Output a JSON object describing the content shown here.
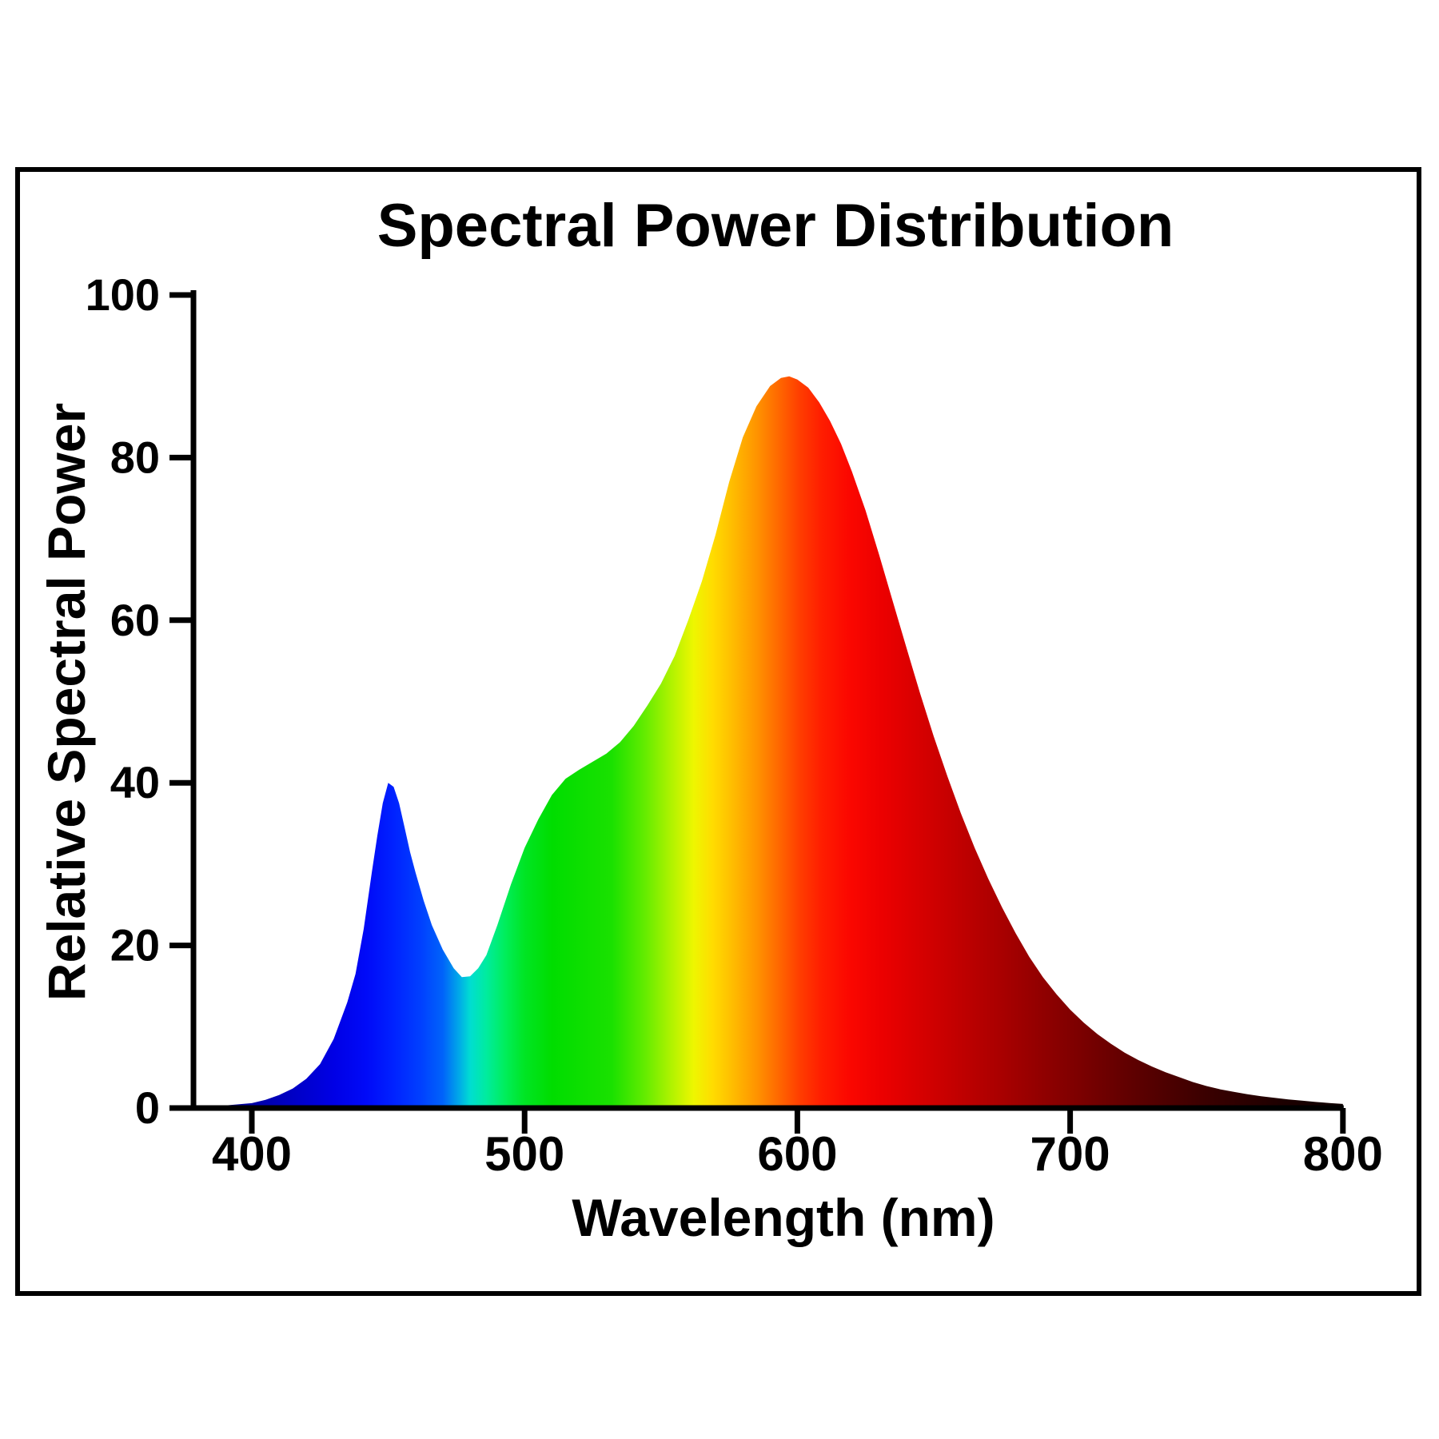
{
  "title": "Spectral Power Distribution",
  "x_axis": {
    "label": "Wavelength (nm)",
    "ticks": [
      400,
      500,
      600,
      700,
      800
    ]
  },
  "y_axis": {
    "label": "Relative Spectral Power",
    "ticks": [
      0,
      20,
      40,
      60,
      80,
      100
    ]
  },
  "colors": {
    "background": "#ffffff",
    "frame_border": "#000000",
    "axis": "#000000",
    "text": "#000000"
  },
  "chart_data": {
    "type": "area",
    "title": "Spectral Power Distribution",
    "xlabel": "Wavelength (nm)",
    "ylabel": "Relative Spectral Power",
    "xlim": [
      380,
      800
    ],
    "ylim": [
      0,
      100
    ],
    "x_ticks": [
      400,
      500,
      600,
      700,
      800
    ],
    "y_ticks": [
      0,
      20,
      40,
      60,
      80,
      100
    ],
    "grid": false,
    "legend": "none",
    "features": {
      "blue_led_peak": {
        "wavelength_nm": 450,
        "value": 40
      },
      "cyan_dip": {
        "wavelength_nm": 478,
        "value": 16
      },
      "phosphor_peak": {
        "wavelength_nm": 597,
        "value": 90
      }
    },
    "series": [
      {
        "name": "Relative spectral power",
        "fill": "wavelength-spectrum-gradient",
        "points": [
          [
            380,
            0.2
          ],
          [
            385,
            0.25
          ],
          [
            390,
            0.3
          ],
          [
            395,
            0.45
          ],
          [
            400,
            0.6
          ],
          [
            405,
            1.0
          ],
          [
            410,
            1.6
          ],
          [
            415,
            2.4
          ],
          [
            420,
            3.6
          ],
          [
            425,
            5.4
          ],
          [
            430,
            8.5
          ],
          [
            435,
            13
          ],
          [
            438,
            16.5
          ],
          [
            441,
            22
          ],
          [
            444,
            29
          ],
          [
            446,
            33.5
          ],
          [
            448,
            37.5
          ],
          [
            450,
            40
          ],
          [
            452,
            39.5
          ],
          [
            454,
            37.5
          ],
          [
            456,
            34.5
          ],
          [
            458,
            31.5
          ],
          [
            460,
            29
          ],
          [
            463,
            25.5
          ],
          [
            466,
            22.5
          ],
          [
            470,
            19.5
          ],
          [
            474,
            17.2
          ],
          [
            477,
            16.1
          ],
          [
            480,
            16.2
          ],
          [
            483,
            17.2
          ],
          [
            486,
            18.8
          ],
          [
            490,
            22.5
          ],
          [
            495,
            27.5
          ],
          [
            500,
            32
          ],
          [
            505,
            35.5
          ],
          [
            510,
            38.5
          ],
          [
            515,
            40.5
          ],
          [
            520,
            41.6
          ],
          [
            525,
            42.6
          ],
          [
            530,
            43.6
          ],
          [
            535,
            45
          ],
          [
            540,
            47
          ],
          [
            545,
            49.5
          ],
          [
            550,
            52.2
          ],
          [
            555,
            55.6
          ],
          [
            560,
            60
          ],
          [
            565,
            64.8
          ],
          [
            570,
            70.5
          ],
          [
            575,
            77
          ],
          [
            580,
            82.5
          ],
          [
            585,
            86.3
          ],
          [
            590,
            88.8
          ],
          [
            594,
            89.8
          ],
          [
            597,
            90
          ],
          [
            600,
            89.6
          ],
          [
            604,
            88.6
          ],
          [
            608,
            86.8
          ],
          [
            612,
            84.5
          ],
          [
            616,
            81.7
          ],
          [
            620,
            78.3
          ],
          [
            625,
            73.5
          ],
          [
            630,
            68
          ],
          [
            635,
            62.3
          ],
          [
            640,
            56.6
          ],
          [
            645,
            51
          ],
          [
            650,
            45.7
          ],
          [
            655,
            40.8
          ],
          [
            660,
            36.2
          ],
          [
            665,
            32
          ],
          [
            670,
            28.2
          ],
          [
            675,
            24.7
          ],
          [
            680,
            21.5
          ],
          [
            685,
            18.6
          ],
          [
            690,
            16.1
          ],
          [
            695,
            14
          ],
          [
            700,
            12.1
          ],
          [
            705,
            10.5
          ],
          [
            710,
            9.1
          ],
          [
            715,
            7.9
          ],
          [
            720,
            6.8
          ],
          [
            725,
            5.9
          ],
          [
            730,
            5.1
          ],
          [
            735,
            4.4
          ],
          [
            740,
            3.8
          ],
          [
            745,
            3.2
          ],
          [
            750,
            2.7
          ],
          [
            755,
            2.3
          ],
          [
            760,
            2.0
          ],
          [
            765,
            1.7
          ],
          [
            770,
            1.45
          ],
          [
            775,
            1.25
          ],
          [
            780,
            1.05
          ],
          [
            785,
            0.9
          ],
          [
            790,
            0.75
          ],
          [
            795,
            0.62
          ],
          [
            800,
            0.5
          ]
        ]
      }
    ],
    "spectrum_stops": [
      [
        380,
        "#000085"
      ],
      [
        400,
        "#0000a5"
      ],
      [
        415,
        "#0000c5"
      ],
      [
        430,
        "#0000e5"
      ],
      [
        442,
        "#000af8"
      ],
      [
        452,
        "#0022ff"
      ],
      [
        462,
        "#0040ff"
      ],
      [
        470,
        "#0063fa"
      ],
      [
        476,
        "#00aae8"
      ],
      [
        480,
        "#00ddd2"
      ],
      [
        486,
        "#00ec9e"
      ],
      [
        493,
        "#00ee5a"
      ],
      [
        500,
        "#00e524"
      ],
      [
        510,
        "#00dd00"
      ],
      [
        532,
        "#1ae100"
      ],
      [
        544,
        "#63ec00"
      ],
      [
        554,
        "#b2f300"
      ],
      [
        562,
        "#eef600"
      ],
      [
        569,
        "#ffdc00"
      ],
      [
        577,
        "#ffb900"
      ],
      [
        585,
        "#ff9400"
      ],
      [
        593,
        "#ff6900"
      ],
      [
        601,
        "#ff3d00"
      ],
      [
        609,
        "#ff1d00"
      ],
      [
        619,
        "#fb0700"
      ],
      [
        631,
        "#ec0000"
      ],
      [
        644,
        "#d80000"
      ],
      [
        659,
        "#c10000"
      ],
      [
        674,
        "#aa0000"
      ],
      [
        689,
        "#920000"
      ],
      [
        704,
        "#7b0000"
      ],
      [
        719,
        "#640000"
      ],
      [
        734,
        "#4f0000"
      ],
      [
        749,
        "#3b0000"
      ],
      [
        764,
        "#2b0000"
      ],
      [
        779,
        "#1c0000"
      ],
      [
        800,
        "#0d0000"
      ]
    ]
  }
}
